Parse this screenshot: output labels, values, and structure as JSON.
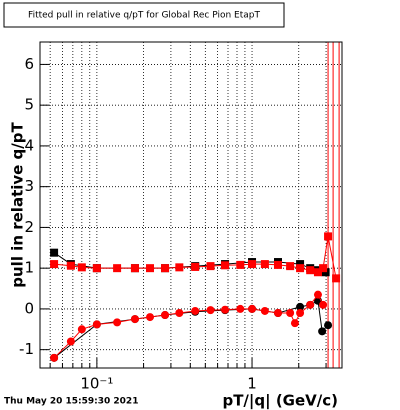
{
  "chart_data": {
    "type": "scatter",
    "title": "Fitted pull in relative q/pT for Global Rec Pion EtapT",
    "xlabel": "pT/|q| (GeV/c)",
    "ylabel": "pull in relative q/pT",
    "footer": "Thu May 20 15:59:30 2021",
    "xscale": "log",
    "grid": true,
    "xlim": [
      0.043,
      3.8
    ],
    "ylim": [
      -1.45,
      6.55
    ],
    "xticks": [
      {
        "value": 0.1,
        "label": "10⁻¹"
      },
      1
    ],
    "xminor": [
      0.05,
      0.06,
      0.07,
      0.08,
      0.09,
      0.2,
      0.3,
      0.4,
      0.5,
      0.6,
      0.7,
      0.8,
      0.9,
      2,
      3
    ],
    "yticks": [
      -1,
      0,
      1,
      2,
      3,
      4,
      5,
      6
    ],
    "vlines": {
      "color": "#ff0000",
      "x": [
        3.09,
        3.33,
        3.64
      ]
    },
    "series": [
      {
        "color": "#000000",
        "marker": "square",
        "x": [
          0.053,
          0.068,
          0.1,
          0.176,
          0.275,
          0.43,
          0.67,
          1.0,
          1.47,
          2.04,
          2.37,
          2.66,
          2.98
        ],
        "values": [
          1.38,
          1.1,
          1.0,
          1.0,
          1.0,
          1.05,
          1.1,
          1.15,
          1.15,
          1.1,
          1.0,
          0.95,
          0.9
        ]
      },
      {
        "color": "#000000",
        "marker": "circle",
        "x": [
          0.053,
          0.1,
          0.176,
          0.275,
          0.43,
          0.67,
          1.0,
          1.47,
          2.04,
          2.37,
          2.66,
          2.83,
          3.09
        ],
        "values": [
          -1.2,
          -0.38,
          -0.25,
          -0.15,
          -0.07,
          -0.03,
          0.0,
          -0.1,
          0.05,
          0.1,
          0.2,
          -0.55,
          -0.4
        ]
      },
      {
        "color": "#ff0000",
        "marker": "square",
        "x": [
          0.053,
          0.068,
          0.08,
          0.1,
          0.135,
          0.176,
          0.22,
          0.275,
          0.34,
          0.43,
          0.54,
          0.67,
          0.84,
          1.0,
          1.21,
          1.47,
          1.76,
          2.04,
          2.37,
          2.66,
          2.87,
          3.09,
          3.48
        ],
        "values": [
          1.1,
          1.06,
          1.02,
          1.0,
          1.0,
          1.0,
          1.0,
          1.0,
          1.02,
          1.03,
          1.05,
          1.07,
          1.08,
          1.1,
          1.1,
          1.08,
          1.05,
          1.0,
          0.95,
          0.9,
          1.0,
          1.78,
          0.75
        ]
      },
      {
        "color": "#ff0000",
        "marker": "circle",
        "x": [
          0.053,
          0.068,
          0.08,
          0.1,
          0.135,
          0.176,
          0.22,
          0.275,
          0.34,
          0.43,
          0.54,
          0.67,
          0.84,
          1.0,
          1.21,
          1.47,
          1.76,
          1.89,
          2.04,
          2.37,
          2.66,
          2.87
        ],
        "values": [
          -1.2,
          -0.8,
          -0.5,
          -0.38,
          -0.33,
          -0.25,
          -0.2,
          -0.15,
          -0.1,
          -0.05,
          -0.03,
          -0.02,
          0.0,
          0.0,
          -0.05,
          -0.1,
          -0.1,
          -0.35,
          -0.1,
          0.1,
          0.35,
          0.1
        ]
      }
    ]
  }
}
